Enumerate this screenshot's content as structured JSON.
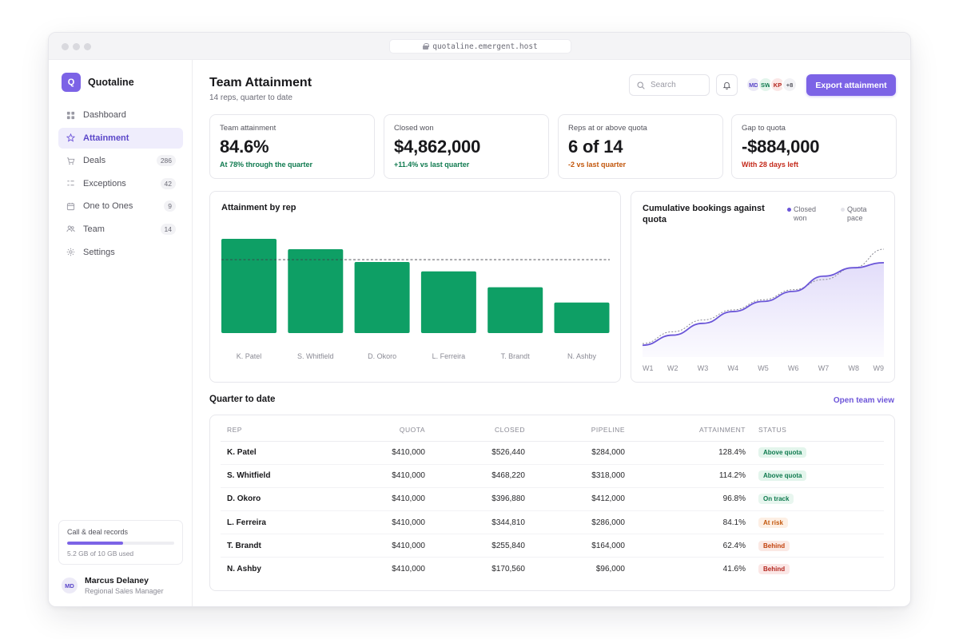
{
  "browser": {
    "url": "quotaline.emergent.host"
  },
  "brand": {
    "logo_letter": "Q",
    "name": "Quotaline"
  },
  "nav": [
    {
      "label": "Dashboard",
      "icon": "grid-icon",
      "count": ""
    },
    {
      "label": "Attainment",
      "icon": "star-icon",
      "count": "",
      "active": true
    },
    {
      "label": "Deals",
      "icon": "cart-icon",
      "count": "286"
    },
    {
      "label": "Exceptions",
      "icon": "list-icon",
      "count": "42"
    },
    {
      "label": "One to Ones",
      "icon": "calendar-icon",
      "count": "9"
    },
    {
      "label": "Team",
      "icon": "users-icon",
      "count": "14"
    },
    {
      "label": "Settings",
      "icon": "gear-icon",
      "count": ""
    }
  ],
  "storage": {
    "title": "Call & deal records",
    "used_text": "5.2 GB of 10 GB used",
    "fraction": 0.52
  },
  "user": {
    "initials": "MD",
    "name": "Marcus Delaney",
    "role": "Regional Sales Manager"
  },
  "header": {
    "title": "Team Attainment",
    "subtitle": "14 reps, quarter to date",
    "search_placeholder": "Search",
    "avatars": [
      {
        "initials": "MD",
        "bg": "#eceaf7",
        "fg": "#5b47c9"
      },
      {
        "initials": "SW",
        "bg": "#e3f5ec",
        "fg": "#0f7a4f"
      },
      {
        "initials": "KP",
        "bg": "#fbe7e6",
        "fg": "#b3261e"
      },
      {
        "initials": "+8",
        "bg": "#f2f2f5",
        "fg": "#52525b"
      }
    ],
    "export_label": "Export attainment"
  },
  "kpis": [
    {
      "label": "Team attainment",
      "value": "84.6%",
      "note": "At 78% through the quarter",
      "note_color": "#0f7a4f"
    },
    {
      "label": "Closed won",
      "value": "$4,862,000",
      "note": "+11.4% vs last quarter",
      "note_color": "#0f7a4f"
    },
    {
      "label": "Reps at or above quota",
      "value": "6 of 14",
      "note": "-2 vs last quarter",
      "note_color": "#c2570c"
    },
    {
      "label": "Gap to quota",
      "value": "-$884,000",
      "note": "With 28 days left",
      "note_color": "#c42b1c"
    }
  ],
  "colors": {
    "accent": "#7c63e6",
    "bar": "#0e9f65"
  },
  "chart_data": [
    {
      "type": "bar",
      "title": "Attainment by rep",
      "categories": [
        "K. Patel",
        "S. Whitfield",
        "D. Okoro",
        "L. Ferreira",
        "T. Brandt",
        "N. Ashby"
      ],
      "values": [
        128.4,
        114.2,
        96.8,
        84.1,
        62.4,
        41.6
      ],
      "reference_line": 100,
      "ylim": [
        0,
        128.4
      ],
      "grid": false
    },
    {
      "type": "area",
      "title": "Cumulative bookings against quota",
      "categories": [
        "W1",
        "W2",
        "W3",
        "W4",
        "W5",
        "W6",
        "W7",
        "W8",
        "W9"
      ],
      "series": [
        {
          "name": "Closed won",
          "color": "#6a55d8",
          "values": [
            0.7,
            1.3,
            2.0,
            2.7,
            3.3,
            3.9,
            4.8,
            5.3,
            5.6
          ]
        },
        {
          "name": "Quota pace",
          "color": "#8a8a94",
          "style": "dotted",
          "values": [
            0.8,
            1.5,
            2.2,
            2.8,
            3.4,
            4.0,
            4.6,
            5.3,
            6.4
          ]
        }
      ],
      "legend": "top-right",
      "grid": false
    }
  ],
  "section": {
    "title": "Quarter to date",
    "link": "Open team view"
  },
  "table": {
    "headers": [
      "REP",
      "QUOTA",
      "CLOSED",
      "PIPELINE",
      "ATTAINMENT",
      "STATUS"
    ],
    "rows": [
      {
        "rep": "K. Patel",
        "quota": "$410,000",
        "closed": "$526,440",
        "pipeline": "$284,000",
        "attainment": "128.4%",
        "status": "Above quota",
        "status_bg": "#e3f5ec",
        "status_fg": "#0f7a4f"
      },
      {
        "rep": "S. Whitfield",
        "quota": "$410,000",
        "closed": "$468,220",
        "pipeline": "$318,000",
        "attainment": "114.2%",
        "status": "Above quota",
        "status_bg": "#e3f5ec",
        "status_fg": "#0f7a4f"
      },
      {
        "rep": "D. Okoro",
        "quota": "$410,000",
        "closed": "$396,880",
        "pipeline": "$412,000",
        "attainment": "96.8%",
        "status": "On track",
        "status_bg": "#e8f6ef",
        "status_fg": "#0f7a4f"
      },
      {
        "rep": "L. Ferreira",
        "quota": "$410,000",
        "closed": "$344,810",
        "pipeline": "$286,000",
        "attainment": "84.1%",
        "status": "At risk",
        "status_bg": "#fdefe4",
        "status_fg": "#c2570c"
      },
      {
        "rep": "T. Brandt",
        "quota": "$410,000",
        "closed": "$255,840",
        "pipeline": "$164,000",
        "attainment": "62.4%",
        "status": "Behind",
        "status_bg": "#fbe9e4",
        "status_fg": "#c2410c"
      },
      {
        "rep": "N. Ashby",
        "quota": "$410,000",
        "closed": "$170,560",
        "pipeline": "$96,000",
        "attainment": "41.6%",
        "status": "Behind",
        "status_bg": "#fbe7e6",
        "status_fg": "#b3261e"
      }
    ]
  }
}
